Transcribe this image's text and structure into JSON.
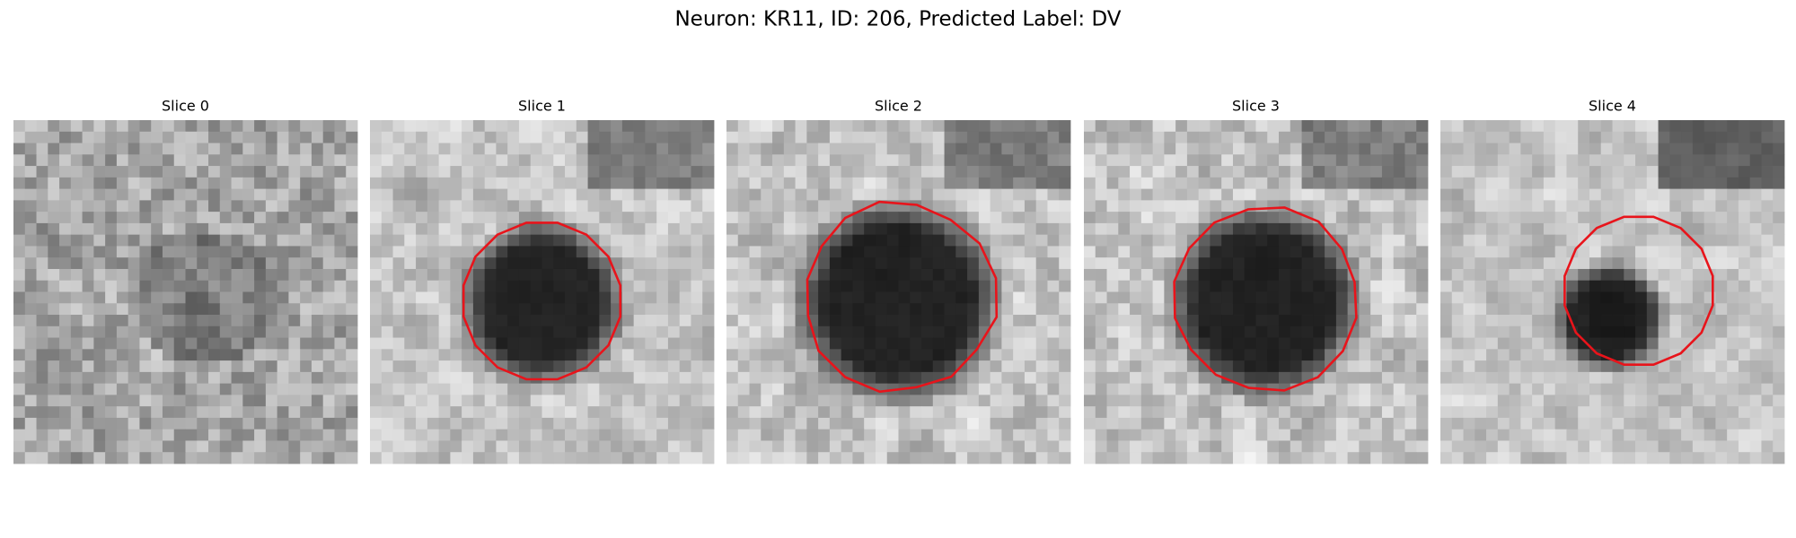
{
  "header": {
    "title": "Neuron: KR11, ID: 206, Predicted Label: DV"
  },
  "panels": [
    {
      "title": "Slice 0"
    },
    {
      "title": "Slice 1"
    },
    {
      "title": "Slice 2"
    },
    {
      "title": "Slice 3"
    },
    {
      "title": "Slice 4"
    }
  ]
}
